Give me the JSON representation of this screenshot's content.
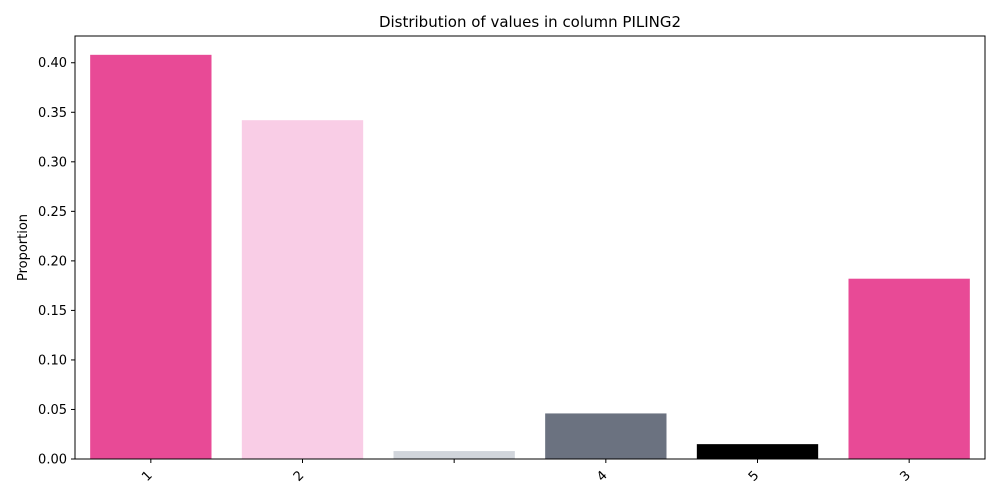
{
  "chart_data": {
    "type": "bar",
    "title": "Distribution of values in column PILING2",
    "xlabel": "",
    "ylabel": "Proportion",
    "categories": [
      "1",
      "2",
      "",
      "4",
      "5",
      "3"
    ],
    "values": [
      0.408,
      0.342,
      0.008,
      0.046,
      0.015,
      0.182
    ],
    "colors": [
      "#E84A96",
      "#F9CDE6",
      "#D1D5DB",
      "#6B7280",
      "#000000",
      "#E84A96"
    ],
    "ylim": [
      0,
      0.427
    ],
    "yticks": [
      0.0,
      0.05,
      0.1,
      0.15,
      0.2,
      0.25,
      0.3,
      0.35,
      0.4
    ],
    "ytick_labels": [
      "0.00",
      "0.05",
      "0.10",
      "0.15",
      "0.20",
      "0.25",
      "0.30",
      "0.35",
      "0.40"
    ],
    "grid": false,
    "legend": "none"
  }
}
